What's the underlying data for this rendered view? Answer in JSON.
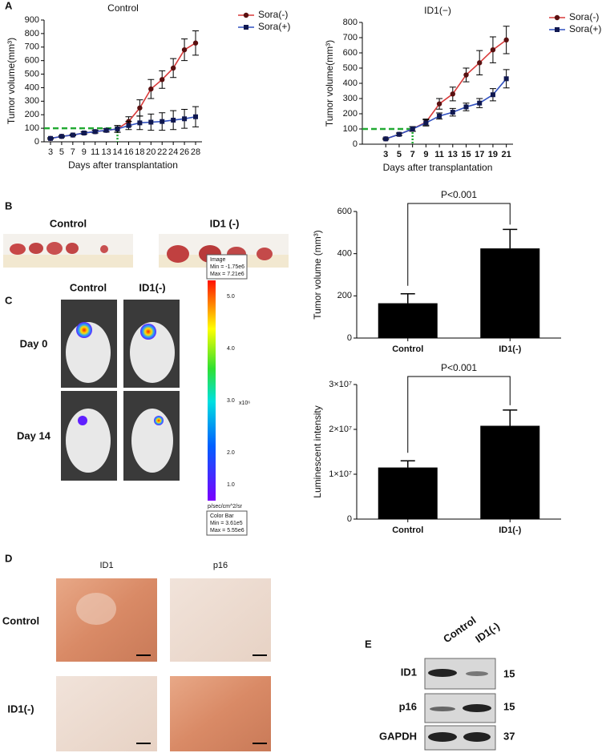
{
  "chart_data": [
    {
      "type": "line",
      "title": "Control",
      "xlabel": "Days after transplantation",
      "ylabel": "Tumor volume(mm³)",
      "categories": [
        3,
        5,
        7,
        9,
        11,
        13,
        14,
        16,
        18,
        20,
        22,
        24,
        26,
        28
      ],
      "series": [
        {
          "name": "Sora(-)",
          "color": "#d83a3a",
          "marker_color": "#5a1010",
          "marker": "circle",
          "values": [
            25,
            40,
            50,
            65,
            75,
            85,
            95,
            150,
            250,
            390,
            460,
            545,
            680,
            730
          ],
          "errors": [
            5,
            5,
            5,
            8,
            10,
            12,
            25,
            35,
            60,
            70,
            65,
            70,
            80,
            90
          ]
        },
        {
          "name": "Sora(+)",
          "color": "#3050c0",
          "marker_color": "#101850",
          "marker": "square",
          "values": [
            25,
            40,
            50,
            65,
            75,
            85,
            95,
            120,
            140,
            145,
            150,
            160,
            170,
            185
          ],
          "errors": [
            5,
            5,
            5,
            8,
            10,
            12,
            25,
            30,
            50,
            60,
            65,
            70,
            70,
            75
          ]
        }
      ],
      "ylim": [
        0,
        900
      ],
      "yticks": [
        0,
        100,
        200,
        300,
        400,
        500,
        600,
        700,
        800,
        900
      ],
      "threshold": {
        "x": 14,
        "y": 100,
        "color": "#22aa33"
      },
      "legend": "right"
    },
    {
      "type": "line",
      "title": "ID1(−)",
      "xlabel": "Days after transplantation",
      "ylabel": "Tumor volume(mm³)",
      "x": [
        3,
        5,
        7,
        9,
        11,
        13,
        15,
        17,
        19,
        21
      ],
      "series": [
        {
          "name": "Sora(-)",
          "color": "#d83a3a",
          "marker_color": "#5a1010",
          "marker": "circle",
          "values": [
            35,
            65,
            100,
            145,
            265,
            330,
            455,
            535,
            620,
            685
          ],
          "errors": [
            5,
            8,
            15,
            20,
            35,
            45,
            45,
            80,
            85,
            90
          ]
        },
        {
          "name": "Sora(+)",
          "color": "#3050c0",
          "marker_color": "#101850",
          "marker": "square",
          "values": [
            35,
            65,
            100,
            140,
            185,
            210,
            245,
            270,
            325,
            430
          ],
          "errors": [
            5,
            8,
            15,
            20,
            20,
            25,
            25,
            30,
            40,
            60
          ]
        }
      ],
      "xlim": [
        -0.5,
        22
      ],
      "xticks": [
        3,
        5,
        7,
        9,
        11,
        13,
        15,
        17,
        19,
        21
      ],
      "ylim": [
        0,
        800
      ],
      "yticks": [
        0,
        100,
        200,
        300,
        400,
        500,
        600,
        700,
        800
      ],
      "threshold": {
        "x": 7,
        "y": 100,
        "color": "#22aa33"
      },
      "legend": "right"
    },
    {
      "type": "bar",
      "ylabel": "Tumor volume (mm³)",
      "annotation": "P<0.001",
      "categories": [
        "Control",
        "ID1(-)"
      ],
      "values": [
        165,
        425
      ],
      "errors": [
        45,
        90
      ],
      "color": "#000000",
      "ylim": [
        0,
        600
      ],
      "yticks": [
        0,
        200,
        400,
        600
      ]
    },
    {
      "type": "bar",
      "ylabel": "Luminescent intensity",
      "annotation": "P<0.001",
      "categories": [
        "Control",
        "ID1(-)"
      ],
      "values": [
        11500000,
        20800000
      ],
      "errors": [
        1500000,
        3500000
      ],
      "color": "#000000",
      "ylim": [
        0,
        30000000
      ],
      "yticks": [
        0,
        {
          "value": 10000000,
          "label": "1×10⁷"
        },
        {
          "value": 20000000,
          "label": "2×10⁷"
        },
        {
          "value": 30000000,
          "label": "3×10⁷"
        }
      ]
    }
  ],
  "panel_labels": [
    "A",
    "B",
    "C",
    "D",
    "E"
  ],
  "panel_b": {
    "labels": [
      "Control",
      "ID1 (-)"
    ]
  },
  "panel_c": {
    "columns": [
      "Control",
      "ID1(-)"
    ],
    "rows": [
      "Day 0",
      "Day 14"
    ],
    "colorbar": {
      "top": [
        "Image",
        "Min = -1.75e6",
        "Max = 7.21e6"
      ],
      "scale": [
        "5.0",
        "4.0",
        "3.0",
        "2.0",
        "1.0"
      ],
      "unit": "x10⁶",
      "units": "p/sec/cm^2/sr",
      "bottom": [
        "Color Bar",
        "Min = 3.61e5",
        "Max = 5.55e6"
      ]
    }
  },
  "panel_d": {
    "columns": [
      "ID1",
      "p16"
    ],
    "rows": [
      "Control",
      "ID1(-)"
    ]
  },
  "panel_e": {
    "columns": [
      "Control",
      "ID1(-)"
    ],
    "rows": [
      "ID1",
      "p16",
      "GAPDH"
    ],
    "sizes": [
      "15",
      "15",
      "37"
    ]
  }
}
